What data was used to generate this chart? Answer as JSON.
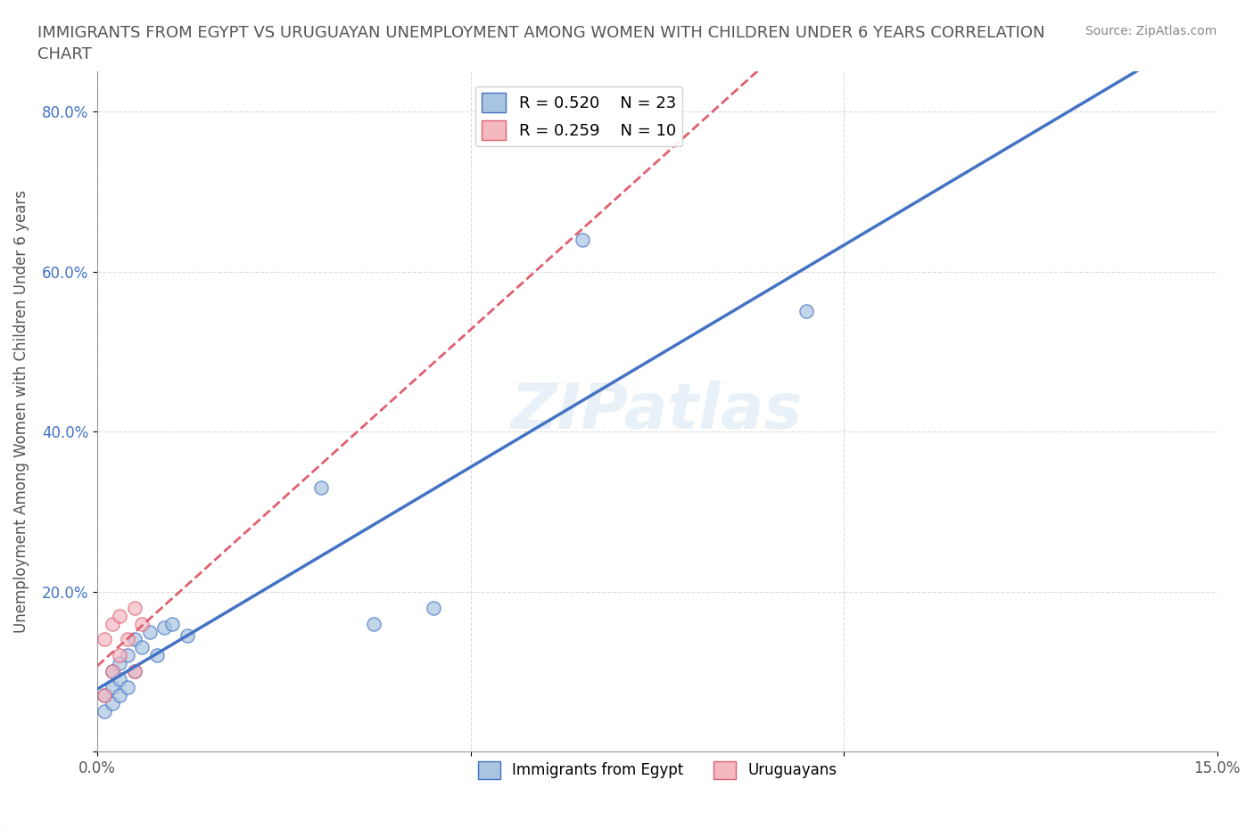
{
  "title": "IMMIGRANTS FROM EGYPT VS URUGUAYAN UNEMPLOYMENT AMONG WOMEN WITH CHILDREN UNDER 6 YEARS CORRELATION\nCHART",
  "source": "Source: ZipAtlas.com",
  "xlabel": "",
  "ylabel": "Unemployment Among Women with Children Under 6 years",
  "xlim": [
    0.0,
    0.15
  ],
  "ylim": [
    0.0,
    0.85
  ],
  "xticks": [
    0.0,
    0.05,
    0.1,
    0.15
  ],
  "xticklabels": [
    "0.0%",
    "",
    "",
    "15.0%"
  ],
  "yticks": [
    0.0,
    0.2,
    0.4,
    0.6,
    0.8
  ],
  "yticklabels": [
    "",
    "20.0%",
    "40.0%",
    "60.0%",
    "80.0%"
  ],
  "legend_r1": "R = 0.520",
  "legend_n1": "N = 23",
  "legend_r2": "R = 0.259",
  "legend_n2": "N = 10",
  "blue_color": "#a8c4e0",
  "blue_line_color": "#4472c4",
  "pink_color": "#f4b8c1",
  "pink_line_color": "#e06070",
  "watermark": "ZIPatlas",
  "egypt_x": [
    0.001,
    0.001,
    0.002,
    0.002,
    0.002,
    0.003,
    0.003,
    0.003,
    0.004,
    0.004,
    0.005,
    0.005,
    0.006,
    0.007,
    0.008,
    0.009,
    0.01,
    0.012,
    0.03,
    0.037,
    0.045,
    0.065,
    0.095
  ],
  "egypt_y": [
    0.05,
    0.07,
    0.06,
    0.08,
    0.1,
    0.07,
    0.09,
    0.11,
    0.08,
    0.12,
    0.1,
    0.14,
    0.13,
    0.15,
    0.12,
    0.155,
    0.16,
    0.145,
    0.33,
    0.16,
    0.18,
    0.64,
    0.55
  ],
  "uruguay_x": [
    0.001,
    0.001,
    0.002,
    0.002,
    0.003,
    0.003,
    0.004,
    0.005,
    0.005,
    0.006
  ],
  "uruguay_y": [
    0.07,
    0.14,
    0.1,
    0.16,
    0.12,
    0.17,
    0.14,
    0.18,
    0.1,
    0.16
  ]
}
